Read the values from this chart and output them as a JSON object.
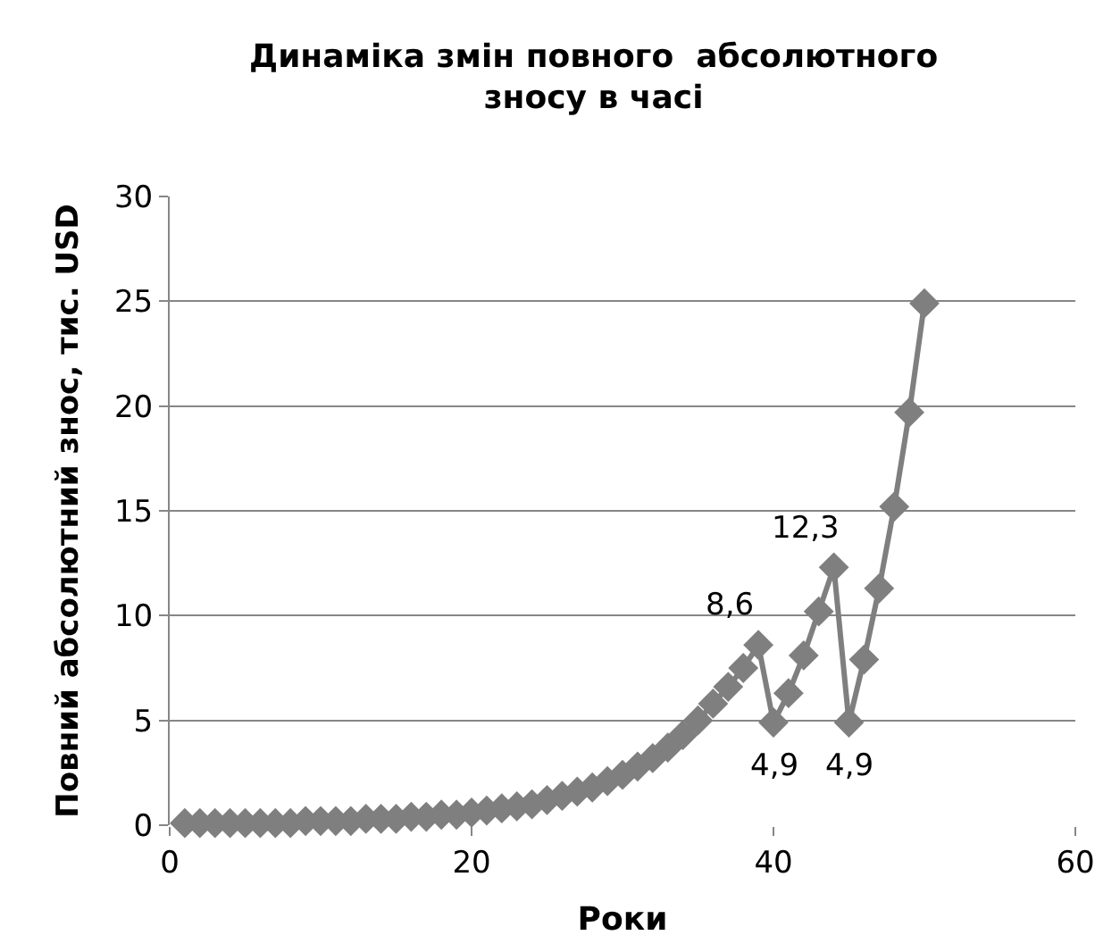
{
  "chart_data": {
    "type": "line",
    "title": "Динаміка змін повного  абсолютного зносу в часі",
    "xlabel": "Роки",
    "ylabel": "Повний абсолютний знос, тис. USD",
    "x": [
      1,
      2,
      3,
      4,
      5,
      6,
      7,
      8,
      9,
      10,
      11,
      12,
      13,
      14,
      15,
      16,
      17,
      18,
      19,
      20,
      21,
      22,
      23,
      24,
      25,
      26,
      27,
      28,
      29,
      30,
      31,
      32,
      33,
      34,
      35,
      36,
      37,
      38,
      39,
      40,
      41,
      42,
      43,
      44,
      45,
      46,
      47,
      48,
      49,
      50
    ],
    "series": [
      {
        "color": "#7f7f7f",
        "values": [
          0.1,
          0.1,
          0.1,
          0.1,
          0.1,
          0.1,
          0.1,
          0.1,
          0.2,
          0.2,
          0.2,
          0.2,
          0.3,
          0.3,
          0.3,
          0.4,
          0.4,
          0.5,
          0.5,
          0.6,
          0.7,
          0.8,
          0.9,
          1.0,
          1.2,
          1.4,
          1.6,
          1.8,
          2.1,
          2.4,
          2.8,
          3.2,
          3.7,
          4.3,
          5.0,
          5.8,
          6.6,
          7.5,
          8.6,
          4.9,
          6.3,
          8.1,
          10.2,
          12.3,
          4.9,
          7.9,
          11.3,
          15.2,
          19.7,
          24.9
        ],
        "value_labels": [
          null,
          null,
          null,
          null,
          null,
          null,
          null,
          null,
          null,
          null,
          null,
          null,
          null,
          null,
          null,
          null,
          null,
          null,
          null,
          null,
          null,
          null,
          null,
          null,
          null,
          null,
          null,
          null,
          null,
          null,
          null,
          null,
          null,
          null,
          null,
          null,
          null,
          null,
          "8,6",
          "4,9",
          null,
          null,
          null,
          "12,3",
          "4,9",
          null,
          null,
          null,
          null,
          null
        ]
      }
    ],
    "xlim": [
      0,
      60
    ],
    "xticks": [
      0,
      20,
      40,
      60
    ],
    "ylim": [
      0,
      30
    ],
    "yticks": [
      0,
      5,
      10,
      15,
      20,
      25,
      30
    ],
    "grid": "y",
    "marker": "diamond",
    "line_style": "solid",
    "legend": false
  }
}
